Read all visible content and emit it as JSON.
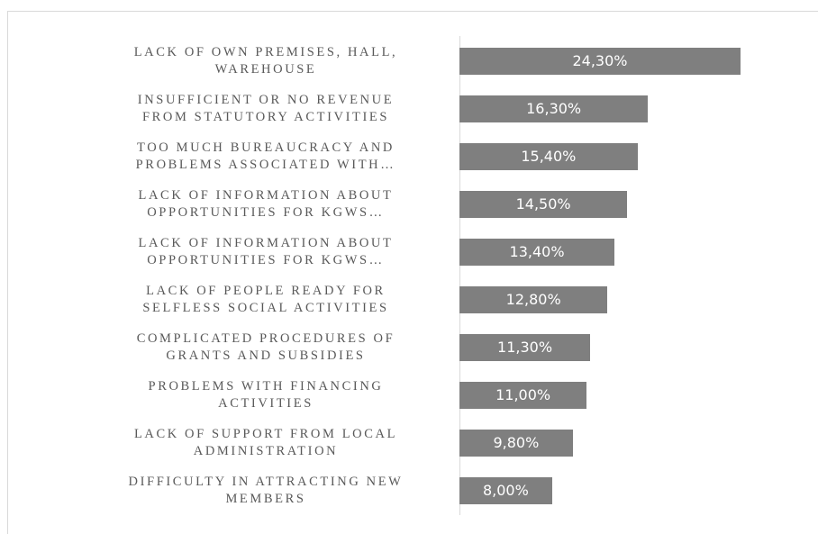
{
  "chart_data": {
    "type": "bar",
    "orientation": "horizontal",
    "color": "#7f7f7f",
    "categories": [
      "LACK OF OWN PREMISES, HALL,\nWAREHOUSE",
      "INSUFFICIENT OR NO REVENUE\nFROM STATUTORY ACTIVITIES",
      "TOO MUCH BUREAUCRACY AND\nPROBLEMS ASSOCIATED WITH…",
      "LACK OF INFORMATION ABOUT\nOPPORTUNITIES FOR KGWS…",
      "LACK OF INFORMATION ABOUT\nOPPORTUNITIES FOR KGWS…",
      "LACK OF PEOPLE READY FOR\nSELFLESS SOCIAL ACTIVITIES",
      "COMPLICATED PROCEDURES OF\nGRANTS AND SUBSIDIES",
      "PROBLEMS WITH FINANCING\nACTIVITIES",
      "LACK OF SUPPORT FROM LOCAL\nADMINISTRATION",
      "DIFFICULTY IN ATTRACTING NEW\nMEMBERS"
    ],
    "values": [
      24.3,
      16.3,
      15.4,
      14.5,
      13.4,
      12.8,
      11.3,
      11.0,
      9.8,
      8.0
    ],
    "value_labels": [
      "24,30%",
      "16,30%",
      "15,40%",
      "14,50%",
      "13,40%",
      "12,80%",
      "11,30%",
      "11,00%",
      "9,80%",
      "8,00%"
    ]
  }
}
